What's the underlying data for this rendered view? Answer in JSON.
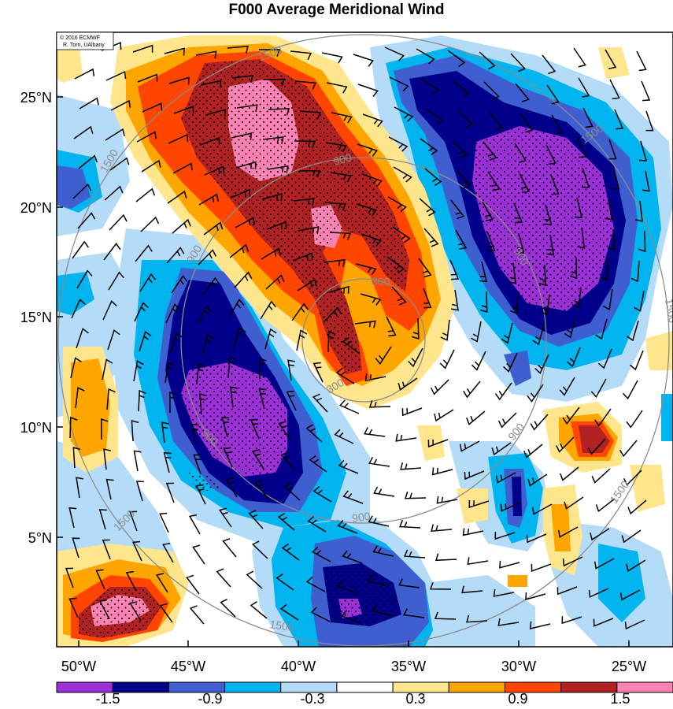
{
  "title": "F000 Average Meridional Wind",
  "credit": {
    "line1": "© 2016 ECMWF",
    "line2": "R. Torn, UAlbany"
  },
  "lat_labels": [
    "25°N",
    "20°N",
    "15°N",
    "10°N",
    "5°N"
  ],
  "lon_labels": [
    "50°W",
    "45°W",
    "40°W",
    "35°W",
    "30°W",
    "25°W"
  ],
  "colorbar": {
    "colors": [
      "#9b30d9",
      "#00008b",
      "#3f5fd0",
      "#00b4f0",
      "#b4dcf8",
      "#ffffff",
      "#ffe68c",
      "#ffa500",
      "#ff4500",
      "#b22222",
      "#ff82b4"
    ],
    "labels": [
      "-1.5",
      "-0.9",
      "-0.3",
      "0.3",
      "0.9",
      "1.5"
    ]
  },
  "contours": {
    "labels": [
      "1500",
      "900",
      "300",
      "900",
      "1500",
      "900",
      "300",
      "900",
      "1500",
      "900",
      "1500",
      "900",
      "1500",
      "1500",
      "1500"
    ]
  }
}
